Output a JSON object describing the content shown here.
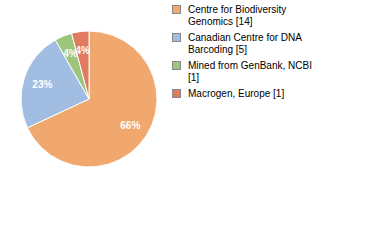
{
  "chart_data": {
    "type": "pie",
    "categories": [
      "Centre for Biodiversity Genomics [14]",
      "Canadian Centre for DNA Barcoding [5]",
      "Mined from GenBank, NCBI [1]",
      "Macrogen, Europe [1]"
    ],
    "values": [
      66,
      23,
      4,
      4
    ],
    "value_labels": [
      "66%",
      "23%",
      "4%",
      "4%"
    ],
    "data_labels": true,
    "colors": [
      "#f0a86e",
      "#a2bde2",
      "#9dc67c",
      "#e07b60"
    ],
    "legend": "right"
  }
}
